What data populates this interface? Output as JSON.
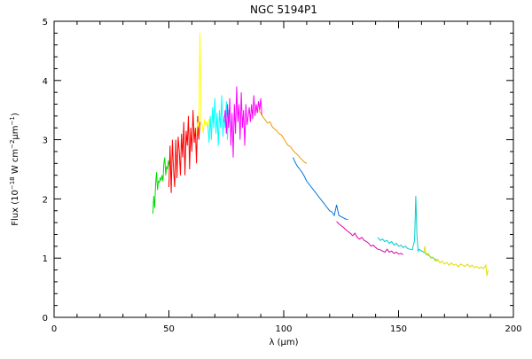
{
  "chart_data": {
    "type": "line",
    "title": "NGC 5194P1",
    "xlabel": "λ (μm)",
    "ylabel": {
      "prefix": "Flux (10",
      "exp1": "−18",
      "mid1": " W cm",
      "exp2": "−2",
      "mid2": "μm",
      "exp3": "−1",
      "suffix": ")"
    },
    "xlim": [
      0,
      200
    ],
    "ylim": [
      0,
      5
    ],
    "xticks": [
      0,
      50,
      100,
      150,
      200
    ],
    "yticks": [
      0,
      1,
      2,
      3,
      4,
      5
    ],
    "grid": false,
    "legend": "none",
    "series": [
      {
        "color": "#00dd00",
        "points": [
          [
            43.0,
            1.75
          ],
          [
            43.4,
            2.05
          ],
          [
            43.8,
            1.85
          ],
          [
            44.2,
            2.25
          ],
          [
            44.6,
            2.45
          ],
          [
            45.0,
            2.15
          ],
          [
            45.4,
            2.3
          ],
          [
            45.8,
            2.28
          ],
          [
            46.2,
            2.35
          ],
          [
            46.6,
            2.32
          ],
          [
            47.0,
            2.4
          ],
          [
            47.4,
            2.3
          ],
          [
            47.8,
            2.6
          ],
          [
            48.2,
            2.7
          ],
          [
            48.6,
            2.4
          ],
          [
            49.0,
            2.55
          ],
          [
            49.4,
            2.5
          ],
          [
            49.8,
            2.65
          ],
          [
            50.2,
            2.55
          ]
        ]
      },
      {
        "color": "#ff0000",
        "points": [
          [
            50.0,
            2.2
          ],
          [
            50.5,
            2.9
          ],
          [
            51.0,
            2.1
          ],
          [
            51.5,
            3.0
          ],
          [
            52.0,
            2.5
          ],
          [
            52.5,
            2.2
          ],
          [
            53.0,
            3.0
          ],
          [
            53.5,
            2.35
          ],
          [
            54.0,
            3.05
          ],
          [
            54.5,
            2.8
          ],
          [
            55.0,
            2.4
          ],
          [
            55.5,
            3.1
          ],
          [
            56.0,
            2.7
          ],
          [
            56.5,
            3.3
          ],
          [
            57.0,
            2.4
          ],
          [
            57.5,
            3.15
          ],
          [
            58.0,
            2.9
          ],
          [
            58.5,
            3.4
          ],
          [
            59.0,
            2.5
          ],
          [
            59.5,
            3.2
          ],
          [
            60.0,
            2.8
          ],
          [
            60.5,
            3.5
          ],
          [
            61.0,
            2.95
          ],
          [
            61.5,
            3.2
          ],
          [
            62.0,
            2.6
          ],
          [
            62.5,
            3.4
          ],
          [
            63.0,
            3.0
          ],
          [
            63.5,
            3.3
          ]
        ]
      },
      {
        "color": "#ffff00",
        "points": [
          [
            62.0,
            3.1
          ],
          [
            62.5,
            3.3
          ],
          [
            63.0,
            3.2
          ],
          [
            63.5,
            4.8
          ],
          [
            64.0,
            3.3
          ],
          [
            64.5,
            3.25
          ],
          [
            65.0,
            3.1
          ],
          [
            65.5,
            3.35
          ],
          [
            66.0,
            3.25
          ],
          [
            66.5,
            3.3
          ],
          [
            67.0,
            3.2
          ],
          [
            67.5,
            3.35
          ],
          [
            68.0,
            3.3
          ]
        ]
      },
      {
        "color": "#00ffff",
        "points": [
          [
            67.0,
            3.25
          ],
          [
            67.5,
            2.95
          ],
          [
            68.0,
            3.4
          ],
          [
            68.5,
            3.0
          ],
          [
            69.0,
            3.55
          ],
          [
            69.5,
            3.2
          ],
          [
            70.0,
            3.7
          ],
          [
            70.5,
            3.1
          ],
          [
            71.0,
            3.45
          ],
          [
            71.5,
            2.9
          ],
          [
            72.0,
            3.5
          ],
          [
            72.5,
            3.2
          ],
          [
            73.0,
            3.75
          ],
          [
            73.5,
            3.05
          ],
          [
            74.0,
            3.4
          ],
          [
            74.5,
            3.2
          ],
          [
            75.0,
            3.65
          ],
          [
            75.5,
            3.0
          ],
          [
            76.0,
            3.5
          ],
          [
            76.5,
            3.3
          ],
          [
            77.0,
            3.25
          ]
        ]
      },
      {
        "color": "#ff00ff",
        "points": [
          [
            74.0,
            3.3
          ],
          [
            74.5,
            3.5
          ],
          [
            75.0,
            3.1
          ],
          [
            75.5,
            3.6
          ],
          [
            76.0,
            3.2
          ],
          [
            76.5,
            3.7
          ],
          [
            77.0,
            2.9
          ],
          [
            77.5,
            3.45
          ],
          [
            78.0,
            2.7
          ],
          [
            78.5,
            3.6
          ],
          [
            79.0,
            3.1
          ],
          [
            79.5,
            3.9
          ],
          [
            80.0,
            3.3
          ],
          [
            80.5,
            3.6
          ],
          [
            81.0,
            3.0
          ],
          [
            81.5,
            3.8
          ],
          [
            82.0,
            3.2
          ],
          [
            82.5,
            3.5
          ],
          [
            83.0,
            2.9
          ],
          [
            83.5,
            3.6
          ],
          [
            84.0,
            3.25
          ],
          [
            84.5,
            3.4
          ],
          [
            85.0,
            3.55
          ],
          [
            85.5,
            3.3
          ],
          [
            86.0,
            3.6
          ],
          [
            86.5,
            3.35
          ],
          [
            87.0,
            3.75
          ],
          [
            87.5,
            3.4
          ],
          [
            88.0,
            3.6
          ],
          [
            88.5,
            3.45
          ],
          [
            89.0,
            3.65
          ],
          [
            89.5,
            3.5
          ],
          [
            90.0,
            3.7
          ],
          [
            90.5,
            3.4
          ]
        ]
      },
      {
        "color": "#ee9900",
        "points": [
          [
            89.0,
            3.5
          ],
          [
            90.0,
            3.45
          ],
          [
            91.0,
            3.38
          ],
          [
            92.0,
            3.33
          ],
          [
            93.0,
            3.28
          ],
          [
            94.0,
            3.3
          ],
          [
            95.0,
            3.22
          ],
          [
            96.0,
            3.18
          ],
          [
            97.0,
            3.15
          ],
          [
            98.0,
            3.1
          ],
          [
            99.0,
            3.08
          ],
          [
            100.0,
            3.02
          ],
          [
            101.0,
            2.95
          ],
          [
            102.0,
            2.9
          ],
          [
            103.0,
            2.88
          ],
          [
            104.0,
            2.82
          ],
          [
            105.0,
            2.78
          ],
          [
            106.0,
            2.75
          ],
          [
            107.0,
            2.7
          ],
          [
            108.0,
            2.66
          ],
          [
            109.0,
            2.62
          ],
          [
            110.0,
            2.6
          ]
        ]
      },
      {
        "color": "#0077dd",
        "points": [
          [
            104.0,
            2.7
          ],
          [
            105.0,
            2.62
          ],
          [
            106.0,
            2.55
          ],
          [
            107.0,
            2.5
          ],
          [
            108.0,
            2.45
          ],
          [
            109.0,
            2.38
          ],
          [
            110.0,
            2.3
          ],
          [
            111.0,
            2.25
          ],
          [
            112.0,
            2.2
          ],
          [
            113.0,
            2.15
          ],
          [
            114.0,
            2.1
          ],
          [
            115.0,
            2.05
          ],
          [
            116.0,
            2.0
          ],
          [
            117.0,
            1.95
          ],
          [
            118.0,
            1.9
          ],
          [
            119.0,
            1.85
          ],
          [
            120.0,
            1.8
          ],
          [
            121.0,
            1.78
          ],
          [
            122.0,
            1.72
          ],
          [
            123.0,
            1.9
          ],
          [
            124.0,
            1.72
          ],
          [
            125.0,
            1.7
          ],
          [
            126.0,
            1.68
          ],
          [
            127.0,
            1.66
          ],
          [
            128.0,
            1.65
          ]
        ]
      },
      {
        "color": "#dd00aa",
        "points": [
          [
            123.0,
            1.62
          ],
          [
            124.0,
            1.58
          ],
          [
            125.0,
            1.55
          ],
          [
            126.0,
            1.52
          ],
          [
            127.0,
            1.48
          ],
          [
            128.0,
            1.45
          ],
          [
            129.0,
            1.42
          ],
          [
            130.0,
            1.38
          ],
          [
            131.0,
            1.42
          ],
          [
            132.0,
            1.35
          ],
          [
            133.0,
            1.32
          ],
          [
            134.0,
            1.35
          ],
          [
            135.0,
            1.3
          ],
          [
            136.0,
            1.28
          ],
          [
            137.0,
            1.25
          ],
          [
            138.0,
            1.2
          ],
          [
            139.0,
            1.22
          ],
          [
            140.0,
            1.18
          ],
          [
            141.0,
            1.15
          ],
          [
            142.0,
            1.14
          ],
          [
            143.0,
            1.12
          ],
          [
            144.0,
            1.1
          ],
          [
            145.0,
            1.15
          ],
          [
            146.0,
            1.1
          ],
          [
            147.0,
            1.12
          ],
          [
            148.0,
            1.08
          ],
          [
            149.0,
            1.1
          ],
          [
            150.0,
            1.07
          ],
          [
            151.0,
            1.08
          ],
          [
            152.0,
            1.06
          ]
        ]
      },
      {
        "color": "#00cccc",
        "points": [
          [
            141.0,
            1.35
          ],
          [
            142.0,
            1.3
          ],
          [
            143.0,
            1.32
          ],
          [
            144.0,
            1.28
          ],
          [
            145.0,
            1.3
          ],
          [
            146.0,
            1.25
          ],
          [
            147.0,
            1.28
          ],
          [
            148.0,
            1.22
          ],
          [
            149.0,
            1.25
          ],
          [
            150.0,
            1.2
          ],
          [
            151.0,
            1.22
          ],
          [
            152.0,
            1.18
          ],
          [
            153.0,
            1.2
          ],
          [
            154.0,
            1.16
          ],
          [
            155.0,
            1.15
          ],
          [
            156.0,
            1.14
          ],
          [
            157.0,
            1.3
          ],
          [
            157.5,
            2.05
          ],
          [
            158.0,
            1.4
          ],
          [
            158.5,
            1.12
          ],
          [
            159.0,
            1.15
          ],
          [
            160.0,
            1.12
          ],
          [
            161.0,
            1.1
          ],
          [
            162.0,
            1.08
          ],
          [
            163.0,
            1.05
          ],
          [
            164.0,
            1.02
          ],
          [
            165.0,
            1.0
          ],
          [
            166.0,
            0.98
          ],
          [
            167.0,
            0.95
          ]
        ]
      },
      {
        "color": "#dddd00",
        "points": [
          [
            161.0,
            1.1
          ],
          [
            161.5,
            1.2
          ],
          [
            162.0,
            1.05
          ],
          [
            163.0,
            1.08
          ],
          [
            164.0,
            1.0
          ],
          [
            165.0,
            1.02
          ],
          [
            166.0,
            0.95
          ],
          [
            167.0,
            0.98
          ],
          [
            168.0,
            0.92
          ],
          [
            169.0,
            0.95
          ],
          [
            170.0,
            0.9
          ],
          [
            171.0,
            0.93
          ],
          [
            172.0,
            0.88
          ],
          [
            173.0,
            0.92
          ],
          [
            174.0,
            0.88
          ],
          [
            175.0,
            0.9
          ],
          [
            176.0,
            0.85
          ],
          [
            177.0,
            0.9
          ],
          [
            178.0,
            0.88
          ],
          [
            179.0,
            0.86
          ],
          [
            180.0,
            0.9
          ],
          [
            181.0,
            0.85
          ],
          [
            182.0,
            0.88
          ],
          [
            183.0,
            0.84
          ],
          [
            184.0,
            0.86
          ],
          [
            185.0,
            0.83
          ],
          [
            186.0,
            0.85
          ],
          [
            187.0,
            0.82
          ],
          [
            188.0,
            0.88
          ],
          [
            188.5,
            0.7
          ],
          [
            189.0,
            0.8
          ]
        ]
      }
    ]
  }
}
